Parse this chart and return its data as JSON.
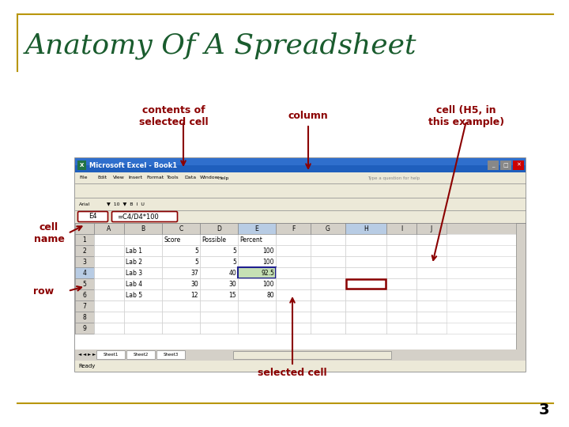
{
  "title": "Anatomy Of A Spreadsheet",
  "title_color": "#1a5c2e",
  "title_fontsize": 26,
  "bg_color": "#ffffff",
  "border_color": "#b8960c",
  "annotation_color": "#8b0000",
  "annotation_fontsize": 9,
  "page_number": "3",
  "labels": {
    "contents_of_selected_cell": "contents of\nselected cell",
    "column": "column",
    "cell_H5": "cell (H5, in\nthis example)",
    "cell_name": "cell\nname",
    "row": "row",
    "selected_cell": "selected cell"
  }
}
